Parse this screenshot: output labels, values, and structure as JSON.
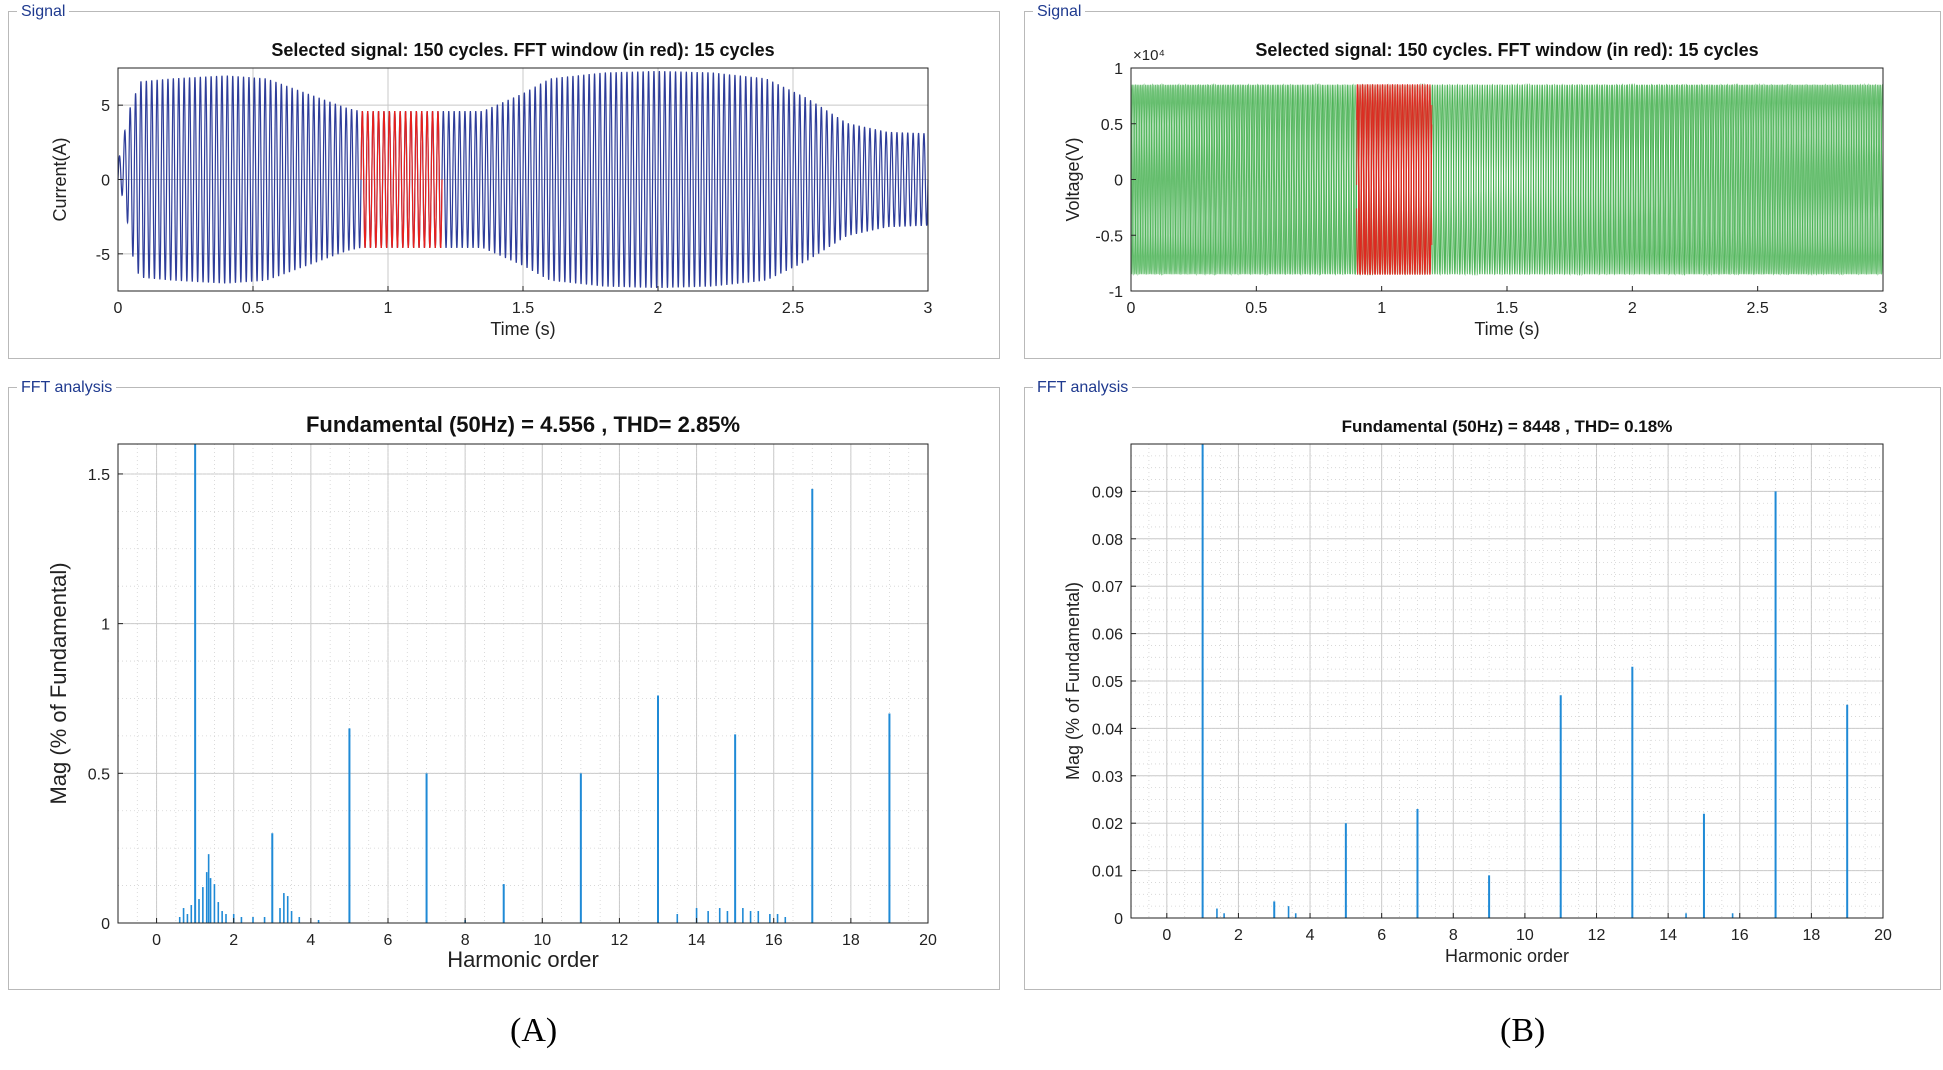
{
  "panels": {
    "a_signal": {
      "label": "Signal"
    },
    "a_fft": {
      "label": "FFT analysis"
    },
    "b_signal": {
      "label": "Signal"
    },
    "b_fft": {
      "label": "FFT analysis"
    }
  },
  "figure_labels": {
    "a": "(A)",
    "b": "(B)"
  },
  "colors": {
    "current_wave": "#2e3d9a",
    "voltage_wave": "#3fae49",
    "fft_window": "#e8201c",
    "spectrum": "#1f8ad6",
    "grid": "#c8c8c8",
    "panel_label": "#1f3a8f"
  },
  "chart_data": [
    {
      "id": "a_signal",
      "type": "line",
      "title": "Selected signal: 150 cycles. FFT window (in red): 15 cycles",
      "xlabel": "Time (s)",
      "ylabel": "Current(A)",
      "xlim": [
        0,
        3
      ],
      "ylim": [
        -7.5,
        7.5
      ],
      "xticks": [
        0,
        0.5,
        1,
        1.5,
        2,
        2.5,
        3
      ],
      "xticklabels": [
        "0",
        "0.5",
        "1",
        "1.5",
        "2",
        "2.5",
        "3"
      ],
      "yticks": [
        -5,
        0,
        5
      ],
      "yticklabels": [
        "-5",
        "0",
        "5"
      ],
      "grid": true,
      "cycles": 150,
      "fft_window": [
        0.9,
        1.2
      ],
      "envelope": {
        "t": [
          0,
          0.02,
          0.05,
          0.08,
          0.2,
          0.4,
          0.55,
          0.7,
          0.85,
          0.9,
          1.2,
          1.35,
          1.5,
          1.6,
          1.8,
          2.0,
          2.2,
          2.4,
          2.55,
          2.7,
          2.85,
          3.0
        ],
        "amp": [
          1.0,
          2.0,
          5.0,
          6.6,
          6.8,
          7.0,
          6.8,
          5.8,
          4.8,
          4.6,
          4.6,
          4.6,
          5.8,
          6.8,
          7.2,
          7.3,
          7.2,
          6.8,
          5.5,
          3.8,
          3.2,
          3.1
        ]
      }
    },
    {
      "id": "b_signal",
      "type": "line",
      "title": "Selected signal: 150 cycles. FFT window (in red): 15 cycles",
      "xlabel": "Time (s)",
      "ylabel": "Voltage(V)",
      "exponent_label": "×10⁴",
      "xlim": [
        0,
        3
      ],
      "ylim": [
        -1,
        1
      ],
      "xticks": [
        0,
        0.5,
        1,
        1.5,
        2,
        2.5,
        3
      ],
      "xticklabels": [
        "0",
        "0.5",
        "1",
        "1.5",
        "2",
        "2.5",
        "3"
      ],
      "yticks": [
        -1,
        -0.5,
        0,
        0.5,
        1
      ],
      "yticklabels": [
        "-1",
        "-0.5",
        "0",
        "0.5",
        "1"
      ],
      "grid": false,
      "cycles": 150,
      "amplitude": 0.85,
      "fft_window": [
        0.9,
        1.2
      ]
    },
    {
      "id": "a_fft",
      "type": "bar",
      "title": "Fundamental (50Hz) = 4.556 , THD= 2.85%",
      "xlabel": "Harmonic order",
      "ylabel": "Mag (% of Fundamental)",
      "xlim": [
        -1,
        20
      ],
      "ylim": [
        0,
        1.6
      ],
      "xticks": [
        0,
        2,
        4,
        6,
        8,
        10,
        12,
        14,
        16,
        18,
        20
      ],
      "xticklabels": [
        "0",
        "2",
        "4",
        "6",
        "8",
        "10",
        "12",
        "14",
        "16",
        "18",
        "20"
      ],
      "yticks": [
        0,
        0.5,
        1,
        1.5
      ],
      "yticklabels": [
        "0",
        "0.5",
        "1",
        "1.5"
      ],
      "grid": true,
      "harmonics": [
        {
          "h": 1,
          "mag": 1.6
        },
        {
          "h": 3,
          "mag": 0.3
        },
        {
          "h": 5,
          "mag": 0.65
        },
        {
          "h": 7,
          "mag": 0.5
        },
        {
          "h": 9,
          "mag": 0.13
        },
        {
          "h": 11,
          "mag": 0.5
        },
        {
          "h": 13,
          "mag": 0.76
        },
        {
          "h": 15,
          "mag": 0.63
        },
        {
          "h": 17,
          "mag": 1.45
        },
        {
          "h": 19,
          "mag": 0.7
        }
      ],
      "interharmonics": [
        {
          "h": 0.6,
          "mag": 0.02
        },
        {
          "h": 0.7,
          "mag": 0.05
        },
        {
          "h": 0.8,
          "mag": 0.03
        },
        {
          "h": 0.9,
          "mag": 0.06
        },
        {
          "h": 1.1,
          "mag": 0.08
        },
        {
          "h": 1.2,
          "mag": 0.12
        },
        {
          "h": 1.3,
          "mag": 0.17
        },
        {
          "h": 1.35,
          "mag": 0.23
        },
        {
          "h": 1.4,
          "mag": 0.15
        },
        {
          "h": 1.5,
          "mag": 0.13
        },
        {
          "h": 1.6,
          "mag": 0.07
        },
        {
          "h": 1.7,
          "mag": 0.04
        },
        {
          "h": 1.8,
          "mag": 0.03
        },
        {
          "h": 2.0,
          "mag": 0.03
        },
        {
          "h": 2.2,
          "mag": 0.02
        },
        {
          "h": 2.5,
          "mag": 0.02
        },
        {
          "h": 2.8,
          "mag": 0.02
        },
        {
          "h": 3.2,
          "mag": 0.05
        },
        {
          "h": 3.3,
          "mag": 0.1
        },
        {
          "h": 3.4,
          "mag": 0.09
        },
        {
          "h": 3.5,
          "mag": 0.04
        },
        {
          "h": 3.7,
          "mag": 0.02
        },
        {
          "h": 4.2,
          "mag": 0.01
        },
        {
          "h": 8.0,
          "mag": 0.01
        },
        {
          "h": 13.5,
          "mag": 0.03
        },
        {
          "h": 14.0,
          "mag": 0.05
        },
        {
          "h": 14.3,
          "mag": 0.04
        },
        {
          "h": 14.6,
          "mag": 0.05
        },
        {
          "h": 14.8,
          "mag": 0.04
        },
        {
          "h": 15.2,
          "mag": 0.05
        },
        {
          "h": 15.4,
          "mag": 0.04
        },
        {
          "h": 15.6,
          "mag": 0.04
        },
        {
          "h": 15.9,
          "mag": 0.03
        },
        {
          "h": 16.1,
          "mag": 0.03
        },
        {
          "h": 16.3,
          "mag": 0.02
        }
      ]
    },
    {
      "id": "b_fft",
      "type": "bar",
      "title": "Fundamental (50Hz) = 8448 , THD= 0.18%",
      "xlabel": "Harmonic order",
      "ylabel": "Mag (% of Fundamental)",
      "xlim": [
        -1,
        20
      ],
      "ylim": [
        0,
        0.1
      ],
      "xticks": [
        0,
        2,
        4,
        6,
        8,
        10,
        12,
        14,
        16,
        18,
        20
      ],
      "xticklabels": [
        "0",
        "2",
        "4",
        "6",
        "8",
        "10",
        "12",
        "14",
        "16",
        "18",
        "20"
      ],
      "yticks": [
        0,
        0.01,
        0.02,
        0.03,
        0.04,
        0.05,
        0.06,
        0.07,
        0.08,
        0.09
      ],
      "yticklabels": [
        "0",
        "0.01",
        "0.02",
        "0.03",
        "0.04",
        "0.05",
        "0.06",
        "0.07",
        "0.08",
        "0.09"
      ],
      "grid": true,
      "harmonics": [
        {
          "h": 1,
          "mag": 0.1
        },
        {
          "h": 3,
          "mag": 0.0035
        },
        {
          "h": 5,
          "mag": 0.02
        },
        {
          "h": 7,
          "mag": 0.023
        },
        {
          "h": 9,
          "mag": 0.009
        },
        {
          "h": 11,
          "mag": 0.047
        },
        {
          "h": 13,
          "mag": 0.053
        },
        {
          "h": 15,
          "mag": 0.022
        },
        {
          "h": 17,
          "mag": 0.09
        },
        {
          "h": 19,
          "mag": 0.045
        }
      ],
      "interharmonics": [
        {
          "h": 1.4,
          "mag": 0.002
        },
        {
          "h": 1.6,
          "mag": 0.001
        },
        {
          "h": 3.4,
          "mag": 0.0025
        },
        {
          "h": 3.6,
          "mag": 0.001
        },
        {
          "h": 14.5,
          "mag": 0.001
        },
        {
          "h": 15.8,
          "mag": 0.001
        }
      ]
    }
  ]
}
